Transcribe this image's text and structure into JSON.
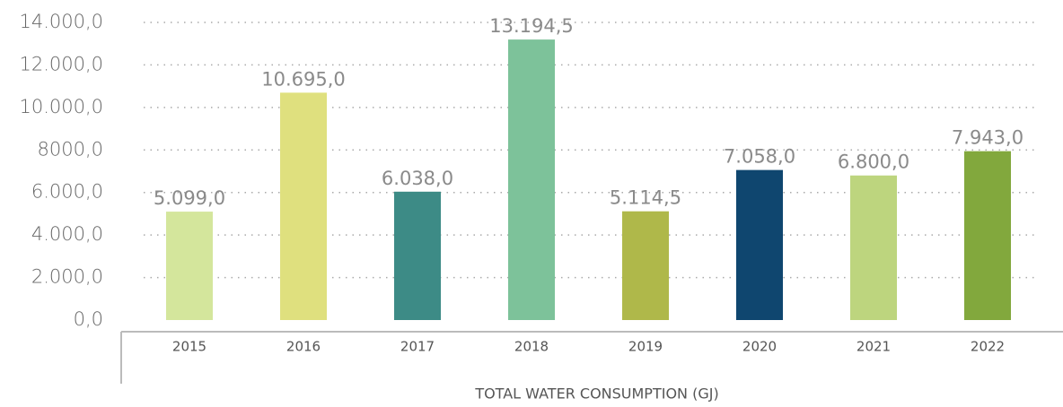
{
  "chart_data": {
    "type": "bar",
    "x_label": "TOTAL WATER CONSUMPTION (GJ)",
    "categories": [
      "2015",
      "2016",
      "2017",
      "2018",
      "2019",
      "2020",
      "2021",
      "2022"
    ],
    "values": [
      5099.0,
      10695.0,
      6038.0,
      13194.5,
      5114.5,
      7058.0,
      6800.0,
      7943.0
    ],
    "value_labels": [
      "5.099,0",
      "10.695,0",
      "6.038,0",
      "13.194,5",
      "5.114,5",
      "7.058,0",
      "6.800,0",
      "7.943,0"
    ],
    "colors": [
      "#d4e69c",
      "#dfe07e",
      "#3d8b86",
      "#7dc29a",
      "#afb84a",
      "#0f466f",
      "#bdd57e",
      "#82a83d"
    ],
    "ylim": [
      0,
      14000
    ],
    "yticks": [
      {
        "value": 0,
        "label": "0,0"
      },
      {
        "value": 2000,
        "label": "2.000,0"
      },
      {
        "value": 4000,
        "label": "4.000,0"
      },
      {
        "value": 6000,
        "label": "6.000,0"
      },
      {
        "value": 8000,
        "label": "8000,0"
      },
      {
        "value": 10000,
        "label": "10.000,0"
      },
      {
        "value": 12000,
        "label": "12.000,0"
      },
      {
        "value": 14000,
        "label": "14.000,0"
      }
    ],
    "grid": true
  }
}
